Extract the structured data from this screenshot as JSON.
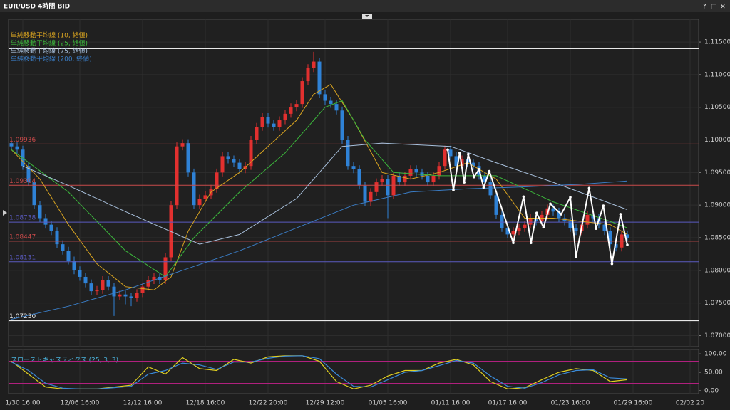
{
  "window": {
    "title": "EUR/USD 4時間 BID",
    "buttons": [
      "?",
      "□",
      "×"
    ]
  },
  "chart_data": [
    {
      "type": "candlestick",
      "categories": [
        null,
        null,
        "1/30 16:00",
        null,
        null,
        null,
        null,
        null,
        null,
        null,
        null,
        null,
        "12/06 16:00",
        null,
        null,
        null,
        null,
        null,
        null,
        null,
        null,
        null,
        null,
        "12/12 16:00",
        null,
        null,
        null,
        null,
        null,
        null,
        null,
        null,
        null,
        null,
        "12/18 16:00",
        null,
        null,
        null,
        null,
        null,
        null,
        null,
        null,
        null,
        null,
        "12/22 20:00",
        null,
        null,
        null,
        null,
        null,
        null,
        null,
        null,
        null,
        "12/29 12:00",
        null,
        null,
        null,
        null,
        null,
        null,
        null,
        null,
        null,
        null,
        "01/05 16:00",
        null,
        null,
        null,
        null,
        null,
        null,
        null,
        null,
        null,
        null,
        "01/11 16:00",
        null,
        null,
        null,
        null,
        null,
        null,
        null,
        null,
        null,
        "01/17 16:00",
        null,
        null,
        null,
        null,
        null,
        null,
        null,
        null,
        null,
        null,
        "01/23 16:00",
        null,
        null,
        null,
        null,
        null,
        null,
        null,
        null,
        null,
        null,
        "01/29 16:00",
        null,
        null,
        null,
        null,
        null,
        null,
        null,
        null,
        null,
        "02/02 20",
        null
      ],
      "open": [
        1.0995,
        1.099,
        1.0985,
        1.096,
        1.0935,
        1.09,
        1.088,
        1.087,
        1.086,
        1.084,
        1.083,
        1.0815,
        1.08,
        1.079,
        1.078,
        1.0768,
        1.077,
        1.0785,
        1.0775,
        1.076,
        1.0763,
        1.076,
        1.0758,
        1.0765,
        1.0775,
        1.0785,
        1.079,
        1.0785,
        1.082,
        1.09,
        1.099,
        1.0995,
        1.095,
        1.09,
        1.091,
        1.0915,
        1.0925,
        1.095,
        1.0975,
        1.097,
        1.0965,
        1.0955,
        1.096,
        1.1,
        1.102,
        1.1035,
        1.1025,
        1.102,
        1.103,
        1.104,
        1.105,
        1.1055,
        1.109,
        1.111,
        1.112,
        1.107,
        1.106,
        1.1055,
        1.1045,
        1.1,
        1.096,
        1.0955,
        1.093,
        1.0905,
        1.092,
        1.0935,
        1.094,
        1.0915,
        1.0945,
        1.0935,
        1.0945,
        1.0955,
        1.095,
        1.0945,
        1.0935,
        1.0945,
        1.096,
        1.0985,
        1.0975,
        1.096,
        1.097,
        1.0965,
        1.096,
        1.0945,
        1.0935,
        1.0915,
        1.0885,
        1.0865,
        1.0855,
        1.086,
        1.0865,
        1.087,
        1.088,
        1.0875,
        1.0885,
        1.0895,
        1.089,
        1.088,
        1.0875,
        1.0865,
        1.086,
        1.087,
        1.0885,
        1.088,
        1.087,
        1.086,
        1.084,
        1.0835,
        1.0855,
        null,
        null,
        null,
        null,
        null,
        null,
        null,
        null,
        null,
        null,
        null,
        null
      ],
      "high": [
        1.1001,
        1.0996,
        1.0991,
        1.0966,
        1.0941,
        1.0906,
        1.0886,
        1.0876,
        1.0866,
        1.0846,
        1.0836,
        1.0821,
        1.0806,
        1.0796,
        1.0786,
        1.0776,
        1.0791,
        1.0791,
        1.0781,
        1.0769,
        1.0769,
        1.0766,
        1.0771,
        1.0781,
        1.0791,
        1.0796,
        1.0796,
        1.0826,
        1.0906,
        1.0996,
        1.1001,
        1.1001,
        1.0956,
        1.0916,
        1.0921,
        1.0931,
        1.0956,
        1.0981,
        1.0981,
        1.0976,
        1.0971,
        1.0966,
        1.1006,
        1.1026,
        1.1041,
        1.1041,
        1.1031,
        1.1036,
        1.1046,
        1.1056,
        1.1061,
        1.1096,
        1.1116,
        1.1135,
        1.1126,
        1.1076,
        1.1066,
        1.1061,
        1.1051,
        1.1006,
        1.0966,
        1.0961,
        1.0936,
        1.0926,
        1.0941,
        1.0946,
        1.0946,
        1.0951,
        1.0951,
        1.0951,
        1.0961,
        1.0961,
        1.0956,
        1.0951,
        1.0951,
        1.0966,
        1.0991,
        1.0991,
        1.0981,
        1.0976,
        1.0976,
        1.0971,
        1.0966,
        1.0951,
        1.0941,
        1.0921,
        1.0891,
        1.0871,
        1.0866,
        1.0871,
        1.0876,
        1.0886,
        1.0886,
        1.0891,
        1.0901,
        1.0901,
        1.0896,
        1.0886,
        1.0881,
        1.0871,
        1.0876,
        1.0891,
        1.0891,
        1.0886,
        1.0876,
        1.0866,
        1.0846,
        1.0861,
        1.0861,
        null,
        null,
        null,
        null,
        null,
        null,
        null,
        null,
        null,
        null,
        null,
        null
      ],
      "low": [
        1.0984,
        1.0979,
        1.0954,
        1.0929,
        1.0894,
        1.0874,
        1.0864,
        1.0854,
        1.0834,
        1.0824,
        1.0809,
        1.0794,
        1.0784,
        1.0774,
        1.0762,
        1.0762,
        1.0764,
        1.0769,
        1.073,
        1.0754,
        1.0748,
        1.0745,
        1.0752,
        1.0759,
        1.0769,
        1.0779,
        1.0779,
        1.0779,
        1.0814,
        1.0894,
        1.0984,
        1.0944,
        1.0894,
        1.0894,
        1.0904,
        1.0909,
        1.0919,
        1.0944,
        1.0964,
        1.0959,
        1.0949,
        1.0949,
        1.0954,
        1.0994,
        1.1014,
        1.1019,
        1.1014,
        1.1014,
        1.1024,
        1.1034,
        1.1044,
        1.1049,
        1.1084,
        1.1104,
        1.1064,
        1.1054,
        1.1049,
        1.1039,
        1.0994,
        1.0954,
        1.0949,
        1.0924,
        1.0899,
        1.0899,
        1.0914,
        1.0929,
        1.088,
        1.0909,
        1.0929,
        1.0929,
        1.0939,
        1.0944,
        1.0939,
        1.0929,
        1.0929,
        1.0939,
        1.0954,
        1.0969,
        1.0954,
        1.0954,
        1.0959,
        1.0954,
        1.0939,
        1.0929,
        1.0909,
        1.0879,
        1.0859,
        1.0849,
        1.0849,
        1.0854,
        1.0859,
        1.0864,
        1.0869,
        1.0869,
        1.0879,
        1.0884,
        1.0874,
        1.0869,
        1.0859,
        1.0854,
        1.0854,
        1.0864,
        1.0874,
        1.0864,
        1.0854,
        1.0834,
        1.0829,
        1.0829,
        1.0844,
        null,
        null,
        null,
        null,
        null,
        null,
        null,
        null,
        null,
        null,
        null,
        null
      ],
      "close": [
        1.099,
        1.0985,
        1.096,
        1.0935,
        1.09,
        1.088,
        1.087,
        1.086,
        1.084,
        1.083,
        1.0815,
        1.08,
        1.079,
        1.078,
        1.0768,
        1.077,
        1.0785,
        1.0775,
        1.076,
        1.0763,
        1.076,
        1.0758,
        1.0765,
        1.0775,
        1.0785,
        1.079,
        1.0785,
        1.082,
        1.09,
        1.099,
        1.0995,
        1.095,
        1.09,
        1.091,
        1.0915,
        1.0925,
        1.095,
        1.0975,
        1.097,
        1.0965,
        1.0955,
        1.096,
        1.1,
        1.102,
        1.1035,
        1.1025,
        1.102,
        1.103,
        1.104,
        1.105,
        1.1055,
        1.109,
        1.111,
        1.112,
        1.107,
        1.106,
        1.1055,
        1.1045,
        1.1,
        1.096,
        1.0955,
        1.093,
        1.0905,
        1.092,
        1.0935,
        1.094,
        1.0915,
        1.0945,
        1.0935,
        1.0945,
        1.0955,
        1.095,
        1.0945,
        1.0935,
        1.0945,
        1.096,
        1.0985,
        1.0975,
        1.096,
        1.097,
        1.0965,
        1.096,
        1.0945,
        1.0935,
        1.0915,
        1.0885,
        1.0865,
        1.0855,
        1.086,
        1.0865,
        1.087,
        1.088,
        1.0875,
        1.0885,
        1.0895,
        1.089,
        1.088,
        1.0875,
        1.0865,
        1.086,
        1.087,
        1.0885,
        1.088,
        1.087,
        1.086,
        1.084,
        1.0835,
        1.0855,
        1.085,
        null,
        null,
        null,
        null,
        null,
        null,
        null,
        null,
        null,
        null,
        null,
        null
      ],
      "up_color": "#e2302f",
      "down_color": "#2f82d6",
      "xlim": [
        -0.5,
        120.5
      ],
      "ylim": [
        1.0683,
        1.1185
      ],
      "yticks": [
        {
          "value": 1.07,
          "label": "1.07000"
        },
        {
          "value": 1.075,
          "label": "1.07500"
        },
        {
          "value": 1.08,
          "label": "1.08000"
        },
        {
          "value": 1.085,
          "label": "1.08500"
        },
        {
          "value": 1.09,
          "label": "1.09000"
        },
        {
          "value": 1.095,
          "label": "1.09500"
        },
        {
          "value": 1.1,
          "label": "1.10000"
        },
        {
          "value": 1.105,
          "label": "1.10500"
        },
        {
          "value": 1.11,
          "label": "1.11000"
        },
        {
          "value": 1.115,
          "label": "1.11500"
        }
      ],
      "grid": true,
      "levels": [
        {
          "value": 1.114,
          "color": "#e8e8e8"
        },
        {
          "value": 1.09936,
          "label": "1.09936",
          "color": "#c84a4a"
        },
        {
          "value": 1.09304,
          "label": "1.09304",
          "color": "#c84a4a"
        },
        {
          "value": 1.08738,
          "label": "1.08738",
          "color": "#5a5ac0"
        },
        {
          "value": 1.08447,
          "label": "1.08447",
          "color": "#c84a4a"
        },
        {
          "value": 1.08131,
          "label": "1.08131",
          "color": "#5a5ac0"
        },
        {
          "value": 1.0723,
          "label": "1.07230",
          "color": "#e8e8e8"
        }
      ],
      "lines": [
        {
          "name": "単純移動平均線 (10, 終値)",
          "color": "#d9a420",
          "x": [
            0,
            5,
            10,
            15,
            20,
            25,
            28,
            31,
            35,
            40,
            45,
            50,
            53,
            56,
            60,
            65,
            70,
            75,
            80,
            85,
            90,
            95,
            100,
            105,
            108
          ],
          "values": [
            1.0985,
            1.094,
            1.087,
            1.081,
            1.0775,
            1.077,
            1.079,
            1.086,
            1.092,
            1.095,
            1.099,
            1.103,
            1.107,
            1.1085,
            1.103,
            1.095,
            1.094,
            1.095,
            1.0965,
            1.094,
            1.088,
            1.088,
            1.0875,
            1.087,
            1.0855
          ]
        },
        {
          "name": "単純移動平均線 (25, 終値)",
          "color": "#3cb83c",
          "x": [
            0,
            10,
            20,
            27,
            32,
            40,
            48,
            55,
            58,
            62,
            67,
            75,
            85,
            95,
            105,
            108
          ],
          "values": [
            1.0985,
            1.092,
            1.083,
            1.079,
            1.085,
            1.092,
            1.098,
            1.105,
            1.106,
            1.1,
            1.095,
            1.0945,
            1.0945,
            1.0905,
            1.0875,
            1.0865
          ]
        },
        {
          "name": "単純移動平均線 (75, 終値)",
          "color": "#a8c0dc",
          "x": [
            2,
            10,
            20,
            33,
            40,
            50,
            58,
            65,
            77,
            85,
            95,
            108
          ],
          "values": [
            1.096,
            1.093,
            1.089,
            1.084,
            1.0855,
            1.091,
            1.099,
            1.0995,
            1.099,
            1.0965,
            1.0935,
            1.0893
          ]
        },
        {
          "name": "単純移動平均線 (200, 終値)",
          "color": "#3a7cc4",
          "x": [
            0,
            10,
            20,
            30,
            40,
            50,
            60,
            70,
            80,
            90,
            100,
            108
          ],
          "values": [
            1.0725,
            1.0745,
            1.077,
            1.08,
            1.083,
            1.0865,
            1.09,
            1.092,
            1.0925,
            1.0928,
            1.0932,
            1.0937
          ]
        }
      ],
      "annotation": {
        "color": "#ffffff",
        "x": [
          76.5,
          77.5,
          78.6,
          79.4,
          80.1,
          81.1,
          82,
          82.8,
          83.8,
          88,
          89.8,
          91.1,
          92.1,
          93.3,
          94.5,
          96.4,
          98,
          99,
          101.3,
          102.5,
          103.8,
          105.3,
          106.8,
          108
        ],
        "values": [
          1.0985,
          1.0923,
          1.098,
          1.0935,
          1.0978,
          1.0943,
          1.0955,
          1.0927,
          1.0952,
          1.0842,
          1.0913,
          1.0842,
          1.0888,
          1.0866,
          1.0902,
          1.0886,
          1.0912,
          1.0821,
          1.0926,
          1.0864,
          1.0899,
          1.081,
          1.0886,
          1.0839
        ]
      }
    },
    {
      "type": "stochastic",
      "title": "スローストキャスティクス (25, 3, 3)",
      "xlim": [
        -0.5,
        120.5
      ],
      "ylim": [
        -8,
        112
      ],
      "yticks": [
        {
          "value": 100,
          "label": "100.00"
        },
        {
          "value": 50,
          "label": "50.00"
        },
        {
          "value": 0,
          "label": "0.00"
        }
      ],
      "levels": [
        20,
        80
      ],
      "level_color": "#b0207e",
      "x": [
        0,
        3,
        6,
        9,
        12,
        15,
        18,
        21,
        24,
        27,
        30,
        33,
        36,
        39,
        42,
        45,
        48,
        51,
        54,
        57,
        60,
        63,
        66,
        69,
        72,
        75,
        78,
        81,
        84,
        87,
        90,
        93,
        96,
        99,
        102,
        105,
        108
      ],
      "series": [
        {
          "color": "#e0d020",
          "values": [
            80,
            45,
            10,
            5,
            5,
            5,
            10,
            15,
            65,
            45,
            90,
            60,
            55,
            85,
            75,
            92,
            95,
            95,
            80,
            25,
            5,
            15,
            40,
            55,
            55,
            75,
            85,
            70,
            25,
            5,
            8,
            30,
            50,
            60,
            55,
            25,
            30
          ]
        },
        {
          "color": "#3a8ad8",
          "values": [
            78,
            55,
            20,
            7,
            5,
            5,
            8,
            12,
            45,
            55,
            75,
            70,
            58,
            78,
            78,
            88,
            94,
            95,
            87,
            45,
            12,
            10,
            30,
            50,
            55,
            68,
            82,
            75,
            40,
            12,
            7,
            22,
            43,
            55,
            57,
            35,
            32
          ]
        }
      ]
    }
  ]
}
